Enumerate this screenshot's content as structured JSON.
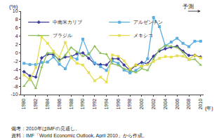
{
  "chart_data": {
    "type": "line",
    "y_label": "(%)",
    "x_label": "(年)",
    "x": [
      1980,
      1981,
      1982,
      1983,
      1984,
      1985,
      1986,
      1987,
      1988,
      1989,
      1990,
      1991,
      1992,
      1993,
      1994,
      1995,
      1996,
      1997,
      1998,
      1999,
      2000,
      2001,
      2002,
      2003,
      2004,
      2005,
      2006,
      2007,
      2008,
      2009,
      2010
    ],
    "series": [
      {
        "name": "中南米カリブ",
        "color": "#3b3b9c",
        "marker": "diamond",
        "values": [
          -4.5,
          -5.5,
          -5.8,
          -1.2,
          -0.3,
          -0.4,
          -1.7,
          -1.0,
          -0.9,
          -0.2,
          0.0,
          -1.3,
          -2.6,
          -2.8,
          -2.9,
          -1.4,
          -1.4,
          -2.9,
          -4.2,
          -3.0,
          -2.3,
          -2.6,
          -0.8,
          0.5,
          1.0,
          1.4,
          1.6,
          0.4,
          -0.6,
          -0.6,
          -1.0
        ]
      },
      {
        "name": "アルゼンチン",
        "color": "#5aaee0",
        "marker": "square",
        "values": [
          -2.5,
          -2.8,
          -2.8,
          -2.3,
          -2.2,
          -1.0,
          -2.7,
          -3.8,
          -1.0,
          -1.5,
          3.3,
          -0.2,
          -2.4,
          -3.3,
          -4.2,
          -1.9,
          -2.5,
          -4.1,
          -4.8,
          -4.2,
          -3.2,
          -1.4,
          8.5,
          6.3,
          1.7,
          2.6,
          3.5,
          2.3,
          1.5,
          2.8,
          2.8
        ]
      },
      {
        "name": "ブラジル",
        "color": "#8cbf5a",
        "marker": "triangle-up",
        "values": [
          -8.0,
          -6.0,
          -8.5,
          -3.4,
          0.0,
          -0.1,
          -2.0,
          -0.5,
          1.3,
          0.2,
          -0.8,
          -0.4,
          1.6,
          -0.1,
          -0.3,
          -2.6,
          -3.0,
          -3.8,
          -4.2,
          -4.7,
          -3.8,
          -4.2,
          -1.5,
          0.8,
          1.8,
          1.6,
          1.3,
          0.1,
          -1.7,
          -1.5,
          -2.9
        ]
      },
      {
        "name": "メキシコ",
        "color": "#e6dc4a",
        "marker": "x",
        "values": [
          -5.3,
          -6.5,
          -3.5,
          3.8,
          2.3,
          0.4,
          -1.0,
          2.5,
          -1.2,
          -2.5,
          -2.9,
          -4.7,
          -6.7,
          -5.8,
          -7.0,
          -0.5,
          -0.8,
          -1.9,
          -3.8,
          -2.9,
          -3.2,
          -2.8,
          -2.1,
          -1.3,
          -0.9,
          -1.0,
          -0.7,
          -0.8,
          -1.5,
          -0.6,
          -1.2
        ]
      }
    ],
    "xlim": [
      1979.5,
      2010.5
    ],
    "xticks": [
      1980,
      1982,
      1984,
      1986,
      1988,
      1990,
      1992,
      1994,
      1996,
      1998,
      2000,
      2002,
      2004,
      2006,
      2008,
      2010
    ],
    "ylim": [
      -10,
      10
    ],
    "yticks": [
      -10,
      -8,
      -6,
      -4,
      -2,
      0,
      2,
      4,
      6,
      8,
      10
    ],
    "grid": false,
    "legend": "top-left",
    "annotations": [
      {
        "text": "予測",
        "x": 2010
      }
    ],
    "notes": [
      "備考：2010年はIMFの見通し。",
      "資料：IMF「World Economic Outlook, April 2010」から作成。"
    ]
  }
}
